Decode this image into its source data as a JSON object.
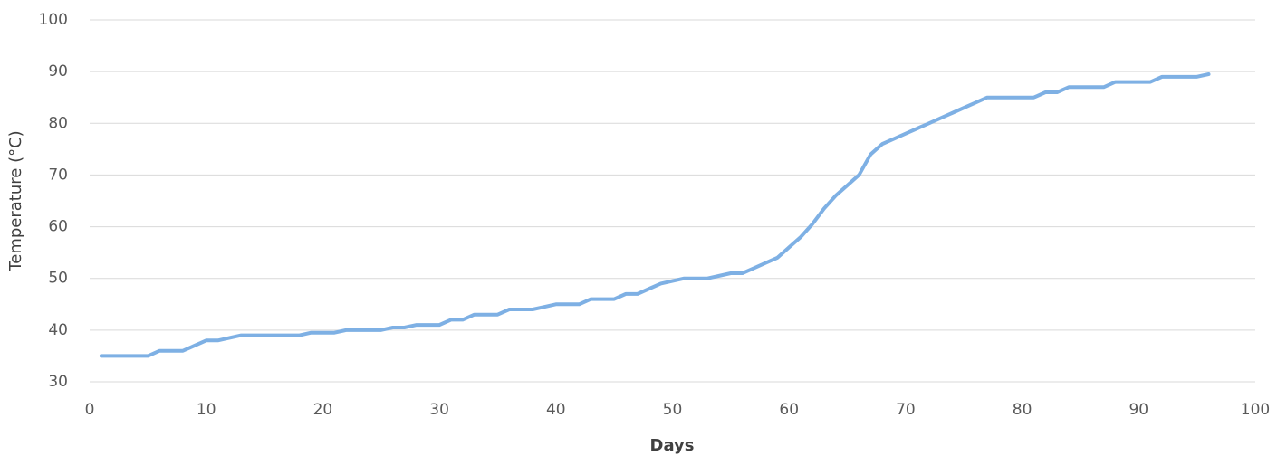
{
  "chart_data": {
    "type": "line",
    "x_label": "Days",
    "y_label": "Temperature (°C)",
    "x": [
      1,
      2,
      3,
      4,
      5,
      6,
      7,
      8,
      9,
      10,
      11,
      12,
      13,
      14,
      15,
      16,
      17,
      18,
      19,
      20,
      21,
      22,
      23,
      24,
      25,
      26,
      27,
      28,
      29,
      30,
      31,
      32,
      33,
      34,
      35,
      36,
      37,
      38,
      39,
      40,
      41,
      42,
      43,
      44,
      45,
      46,
      47,
      48,
      49,
      50,
      51,
      52,
      53,
      54,
      55,
      56,
      57,
      58,
      59,
      60,
      61,
      62,
      63,
      64,
      65,
      66,
      67,
      68,
      69,
      70,
      71,
      72,
      73,
      74,
      75,
      76,
      77,
      78,
      79,
      80,
      81,
      82,
      83,
      84,
      85,
      86,
      87,
      88,
      89,
      90,
      91,
      92,
      93,
      94,
      95,
      96
    ],
    "series": [
      {
        "color": "#7eb0e4",
        "values": [
          35,
          35,
          35,
          35,
          35,
          36,
          36,
          36,
          37,
          38,
          38,
          38.5,
          39,
          39,
          39,
          39,
          39,
          39,
          39.5,
          39.5,
          39.5,
          40,
          40,
          40,
          40,
          40.5,
          40.5,
          41,
          41,
          41,
          42,
          42,
          43,
          43,
          43,
          44,
          44,
          44,
          44.5,
          45,
          45,
          45,
          46,
          46,
          46,
          47,
          47,
          48,
          49,
          49.5,
          50,
          50,
          50,
          50.5,
          51,
          51,
          52,
          53,
          54,
          56,
          58,
          60.5,
          63.5,
          66,
          68,
          70,
          74,
          76,
          77,
          78,
          79,
          80,
          81,
          82,
          83,
          84,
          85,
          85,
          85,
          85,
          85,
          86,
          86,
          87,
          87,
          87,
          87,
          88,
          88,
          88,
          88,
          89,
          89,
          89,
          89,
          89.5
        ]
      }
    ],
    "xlim": [
      0,
      100
    ],
    "xticks": [
      0,
      10,
      20,
      30,
      40,
      50,
      60,
      70,
      80,
      90,
      100
    ],
    "ylim": [
      30,
      100
    ],
    "yticks": [
      30,
      40,
      50,
      60,
      70,
      80,
      90,
      100
    ],
    "grid": true
  }
}
